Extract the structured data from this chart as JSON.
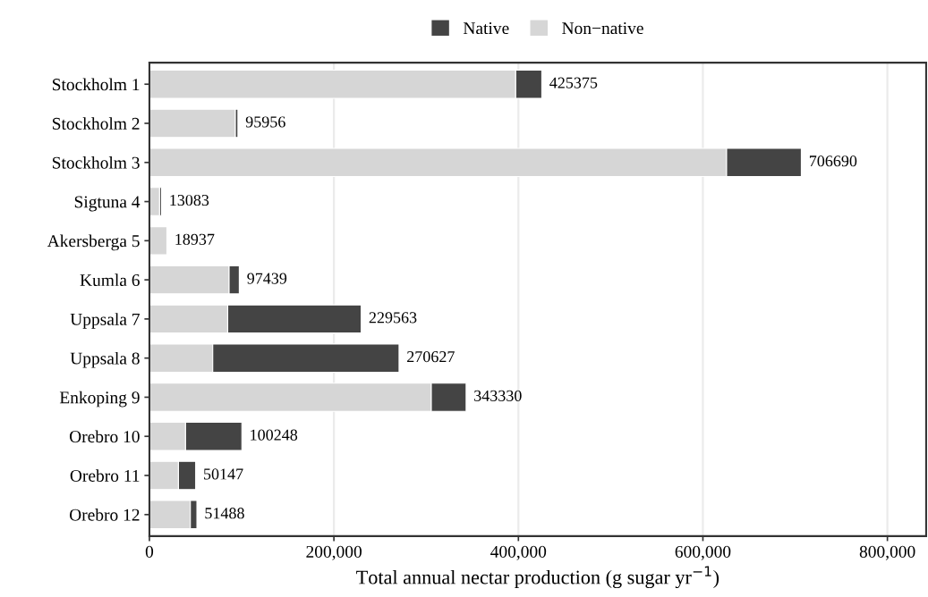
{
  "chart_data": {
    "type": "bar",
    "orientation": "horizontal",
    "stacked": true,
    "xlabel": "Total annual nectar production (g sugar yr$^{−1}$)",
    "categories": [
      "Stockholm 1",
      "Stockholm 2",
      "Stockholm 3",
      "Sigtuna 4",
      "Akersberga 5",
      "Kumla 6",
      "Uppsala 7",
      "Uppsala 8",
      "Enkoping 9",
      "Orebro 10",
      "Orebro 11",
      "Orebro 12"
    ],
    "series": [
      {
        "name": "Non−native",
        "color": "#d6d6d6",
        "values": [
          397100,
          93200,
          625700,
          11070,
          18937,
          86400,
          84900,
          68650,
          305600,
          39200,
          31500,
          44400
        ]
      },
      {
        "name": "Native",
        "color": "#444444",
        "values": [
          28275,
          2756,
          80990,
          2013,
          null,
          11039,
          144663,
          201977,
          37730,
          61048,
          18647,
          7088
        ]
      }
    ],
    "totals": [
      "425375",
      "95956",
      "706690",
      "13083",
      "18937",
      "97439",
      "229563",
      "270627",
      "343330",
      "100248",
      "50147",
      "51488"
    ],
    "xlim": [
      0,
      842000
    ],
    "xticks": [
      0,
      {
        "value": 200000,
        "label": "200,000"
      },
      {
        "value": 400000,
        "label": "400,000"
      },
      {
        "value": 600000,
        "label": "600,000"
      },
      {
        "value": 800000,
        "label": "800,000"
      }
    ],
    "grid": "x",
    "legend": "top"
  }
}
